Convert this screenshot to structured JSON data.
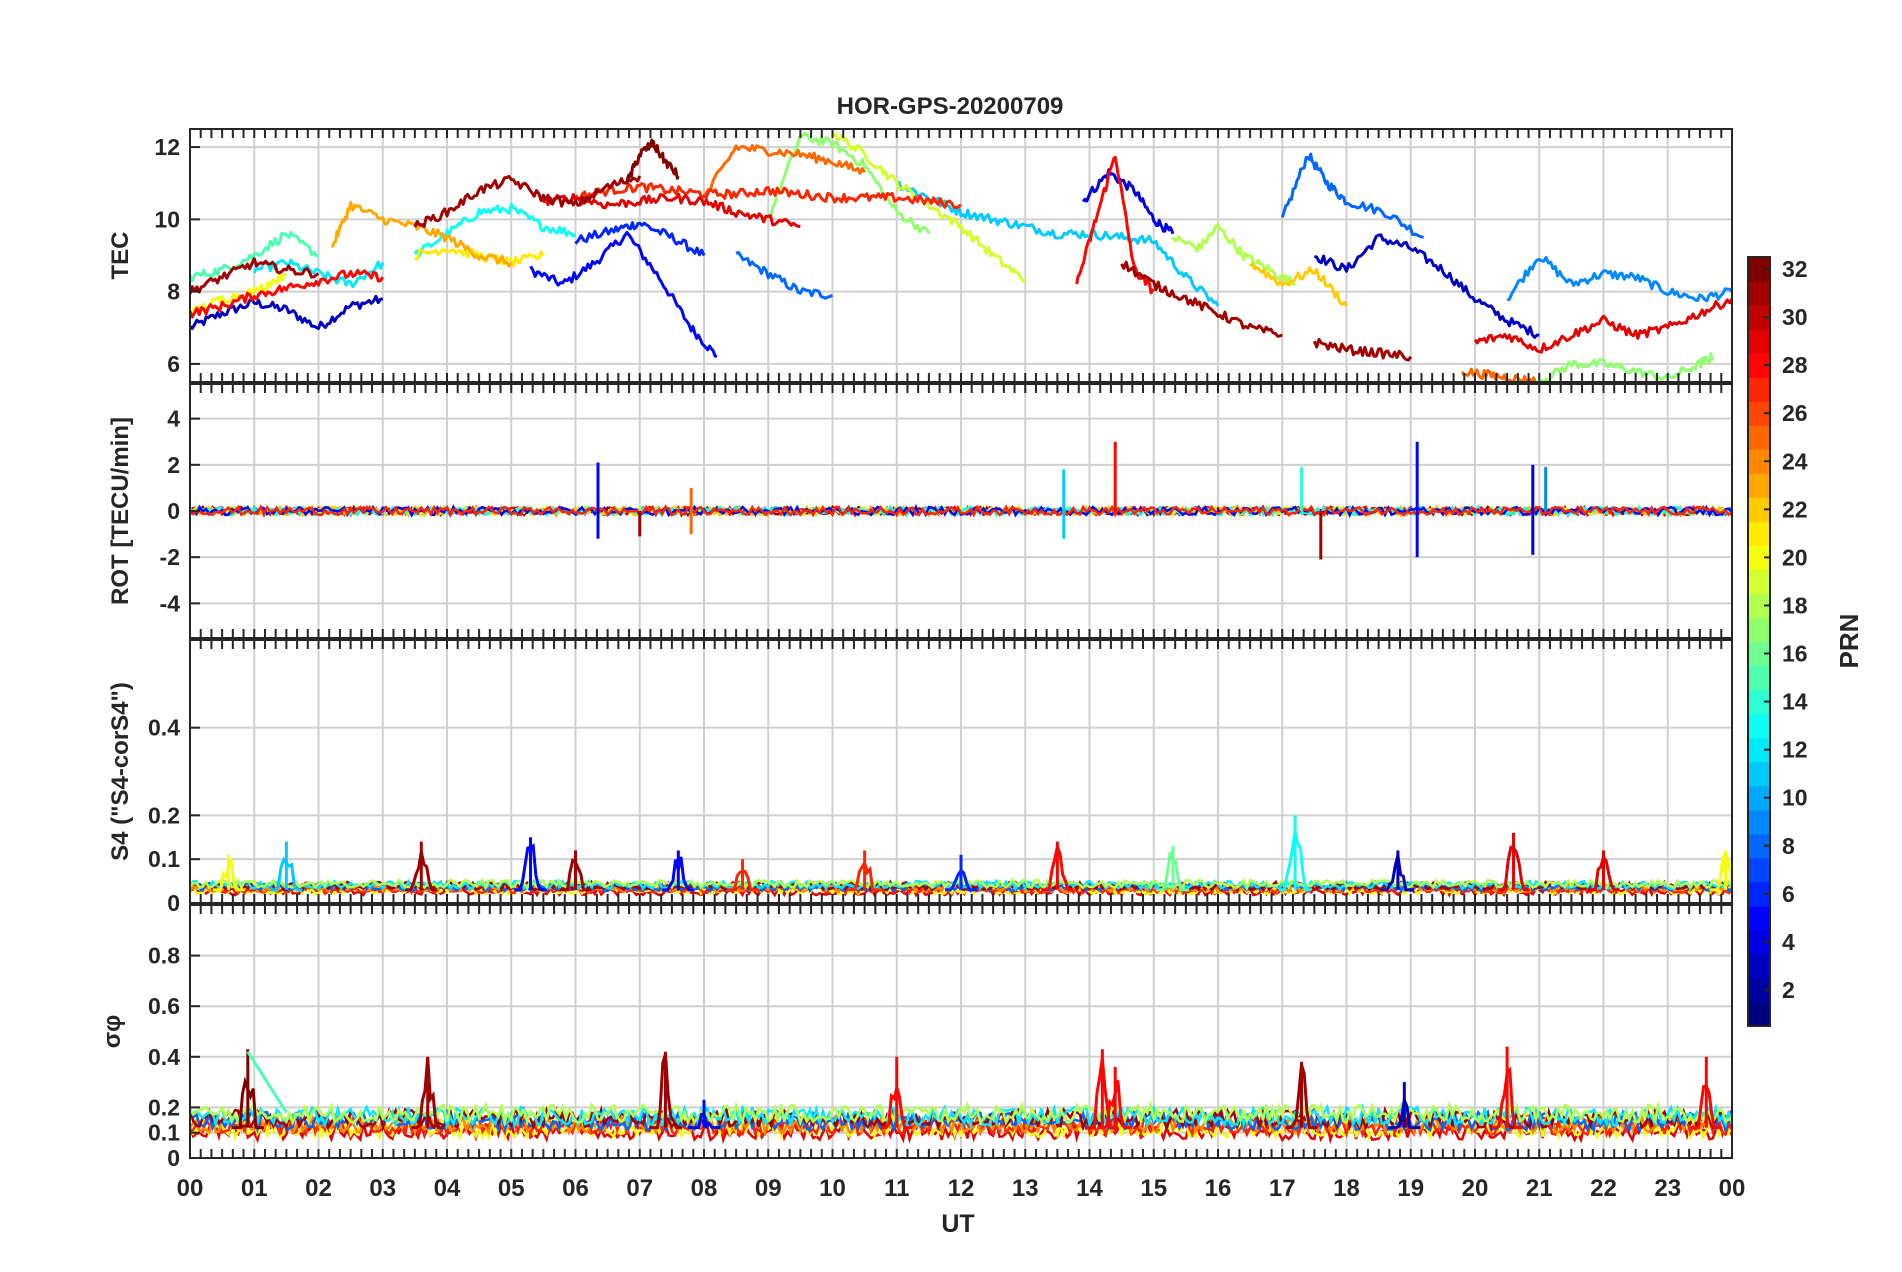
{
  "figure": {
    "title": "HOR-GPS-20200709",
    "xlabel": "UT"
  },
  "colorbar": {
    "label": "PRN",
    "range": [
      1,
      32
    ],
    "ticks": [
      "2",
      "4",
      "6",
      "8",
      "10",
      "12",
      "14",
      "16",
      "18",
      "20",
      "22",
      "24",
      "26",
      "28",
      "30",
      "32"
    ]
  },
  "chart_data": [
    {
      "type": "line",
      "ylabel": "TEC",
      "xlim": [
        0,
        24
      ],
      "ylim": [
        5.5,
        12.5
      ],
      "yticks": [
        "6",
        "8",
        "10",
        "12"
      ],
      "xticks": [
        "00",
        "01",
        "02",
        "03",
        "04",
        "05",
        "06",
        "07",
        "08",
        "09",
        "10",
        "11",
        "12",
        "13",
        "14",
        "15",
        "16",
        "17",
        "18",
        "19",
        "20",
        "21",
        "22",
        "23",
        "00"
      ],
      "grid": true,
      "series": [
        {
          "prn": 3,
          "x": [
            0.0,
            0.5,
            1.0,
            1.5,
            2.0,
            2.5,
            3.0
          ],
          "y": [
            7.0,
            7.4,
            7.7,
            7.5,
            7.0,
            7.6,
            7.8
          ]
        },
        {
          "prn": 5,
          "x": [
            5.3,
            5.8,
            6.3,
            6.8,
            7.3,
            7.8,
            8.2
          ],
          "y": [
            8.6,
            8.2,
            8.8,
            9.6,
            8.4,
            7.0,
            6.2
          ]
        },
        {
          "prn": 6,
          "x": [
            6.0,
            6.6,
            7.0,
            7.5,
            8.0
          ],
          "y": [
            9.4,
            9.7,
            9.9,
            9.5,
            9.0
          ]
        },
        {
          "prn": 8,
          "x": [
            8.5,
            9.0,
            9.5,
            10.0
          ],
          "y": [
            9.0,
            8.5,
            8.0,
            7.9
          ]
        },
        {
          "prn": 4,
          "x": [
            13.9,
            14.3,
            14.7,
            15.0,
            15.3
          ],
          "y": [
            10.5,
            11.3,
            10.8,
            10.0,
            9.6
          ]
        },
        {
          "prn": 8,
          "x": [
            17.0,
            17.4,
            17.7,
            18.0,
            18.6,
            19.2
          ],
          "y": [
            10.0,
            11.8,
            11.0,
            10.5,
            10.2,
            9.5
          ]
        },
        {
          "prn": 3,
          "x": [
            17.5,
            18.0,
            18.5,
            19.0,
            19.5,
            20.0,
            20.5,
            21.0
          ],
          "y": [
            9.0,
            8.6,
            9.5,
            9.2,
            8.6,
            7.8,
            7.2,
            6.8
          ]
        },
        {
          "prn": 9,
          "x": [
            20.5,
            21.0,
            21.5,
            22.0,
            22.5,
            23.0,
            23.5,
            24.0
          ],
          "y": [
            7.8,
            9.0,
            8.2,
            8.5,
            8.4,
            8.0,
            7.8,
            8.0
          ]
        },
        {
          "prn": 12,
          "x": [
            1.0,
            1.5,
            2.0,
            2.5,
            3.0
          ],
          "y": [
            8.6,
            8.8,
            8.5,
            8.2,
            8.8
          ]
        },
        {
          "prn": 13,
          "x": [
            3.5,
            4.0,
            4.5,
            5.0,
            5.5,
            6.0
          ],
          "y": [
            9.0,
            9.6,
            10.2,
            10.3,
            9.8,
            9.6
          ]
        },
        {
          "prn": 11,
          "x": [
            11.0,
            11.5,
            12.0,
            12.5,
            13.0,
            13.5,
            14.0,
            14.5,
            15.0,
            15.5,
            16.0
          ],
          "y": [
            11.0,
            10.6,
            10.2,
            10.0,
            9.8,
            9.6,
            9.6,
            9.5,
            9.4,
            8.4,
            7.6
          ]
        },
        {
          "prn": 15,
          "x": [
            0.0,
            0.5,
            1.0,
            1.5,
            2.0
          ],
          "y": [
            8.4,
            8.6,
            9.0,
            9.6,
            9.0
          ]
        },
        {
          "prn": 17,
          "x": [
            9.0,
            9.5,
            10.0,
            10.5,
            11.0,
            11.5
          ],
          "y": [
            10.0,
            12.3,
            12.1,
            11.5,
            10.2,
            9.6
          ]
        },
        {
          "prn": 18,
          "x": [
            15.3,
            15.7,
            16.0,
            16.4,
            16.8,
            17.2
          ],
          "y": [
            9.5,
            9.2,
            9.8,
            9.0,
            8.6,
            8.2
          ]
        },
        {
          "prn": 17,
          "x": [
            21.0,
            21.5,
            22.0,
            22.5,
            23.0,
            23.5,
            23.7
          ],
          "y": [
            5.5,
            6.0,
            6.0,
            5.8,
            5.6,
            6.0,
            6.2
          ]
        },
        {
          "prn": 19,
          "x": [
            10.0,
            10.5,
            11.0,
            11.5,
            12.0,
            12.5,
            13.0
          ],
          "y": [
            12.4,
            11.8,
            11.0,
            10.4,
            9.8,
            9.0,
            8.3
          ]
        },
        {
          "prn": 20,
          "x": [
            0.0,
            0.5,
            1.0,
            1.5
          ],
          "y": [
            7.4,
            7.8,
            8.0,
            8.5
          ]
        },
        {
          "prn": 21,
          "x": [
            3.5,
            4.0,
            4.5,
            5.0,
            5.5
          ],
          "y": [
            9.0,
            9.2,
            9.0,
            8.8,
            9.0
          ]
        },
        {
          "prn": 22,
          "x": [
            16.5,
            17.0,
            17.5,
            18.0
          ],
          "y": [
            8.8,
            8.2,
            8.6,
            7.6
          ]
        },
        {
          "prn": 23,
          "x": [
            2.2,
            2.5,
            3.0,
            3.5,
            4.0,
            4.5,
            5.0
          ],
          "y": [
            9.2,
            10.4,
            10.0,
            9.8,
            9.5,
            9.0,
            8.8
          ]
        },
        {
          "prn": 25,
          "x": [
            8.0,
            8.5,
            9.0,
            9.5,
            10.0,
            10.5
          ],
          "y": [
            10.6,
            12.0,
            11.9,
            11.8,
            11.6,
            11.3
          ]
        },
        {
          "prn": 25,
          "x": [
            19.8,
            20.2,
            20.6,
            21.0
          ],
          "y": [
            5.8,
            5.7,
            5.6,
            5.5
          ]
        },
        {
          "prn": 27,
          "x": [
            6.0,
            6.5,
            7.0,
            7.5,
            8.0,
            8.5,
            9.0,
            9.5,
            10.0,
            10.5,
            11.0,
            11.5,
            12.0
          ],
          "y": [
            10.6,
            10.8,
            10.9,
            10.8,
            10.7,
            10.7,
            10.8,
            10.7,
            10.6,
            10.6,
            10.6,
            10.5,
            10.4
          ]
        },
        {
          "prn": 28,
          "x": [
            0.0,
            0.5,
            1.0,
            1.5,
            2.0,
            2.5,
            3.0
          ],
          "y": [
            7.4,
            7.6,
            7.9,
            8.1,
            8.3,
            8.5,
            8.4
          ]
        },
        {
          "prn": 28,
          "x": [
            13.8,
            14.1,
            14.4,
            14.7,
            15.0
          ],
          "y": [
            8.2,
            10.0,
            11.8,
            8.6,
            8.0
          ]
        },
        {
          "prn": 29,
          "x": [
            5.5,
            6.0,
            6.5,
            7.0,
            7.5,
            8.0,
            8.5,
            9.0,
            9.5
          ],
          "y": [
            10.5,
            10.6,
            10.4,
            10.5,
            10.6,
            10.5,
            10.2,
            10.0,
            9.8
          ]
        },
        {
          "prn": 29,
          "x": [
            20.0,
            20.5,
            21.0,
            21.5,
            22.0,
            22.5,
            23.0,
            23.5,
            24.0
          ],
          "y": [
            6.6,
            6.8,
            6.4,
            6.8,
            7.2,
            6.8,
            7.0,
            7.4,
            7.8
          ]
        },
        {
          "prn": 31,
          "x": [
            0.0,
            0.5,
            1.0,
            1.5,
            2.0
          ],
          "y": [
            8.0,
            8.4,
            8.8,
            8.6,
            8.5
          ]
        },
        {
          "prn": 31,
          "x": [
            3.5,
            4.0,
            4.5,
            5.0,
            5.5,
            6.0,
            6.5,
            7.0
          ],
          "y": [
            9.8,
            10.2,
            10.8,
            11.1,
            10.6,
            10.4,
            10.9,
            11.2
          ]
        },
        {
          "prn": 31,
          "x": [
            14.5,
            15.0,
            15.5,
            16.0,
            16.5,
            17.0
          ],
          "y": [
            8.8,
            8.2,
            7.8,
            7.4,
            7.0,
            6.8
          ]
        },
        {
          "prn": 31,
          "x": [
            17.5,
            18.0,
            18.5,
            19.0
          ],
          "y": [
            6.6,
            6.4,
            6.3,
            6.2
          ]
        },
        {
          "prn": 32,
          "x": [
            6.8,
            7.0,
            7.2,
            7.4,
            7.6
          ],
          "y": [
            11.0,
            11.8,
            12.1,
            11.6,
            11.2
          ]
        }
      ]
    },
    {
      "type": "line",
      "ylabel": "ROT [TECU/min]",
      "xlim": [
        0,
        24
      ],
      "ylim": [
        -5.5,
        5.5
      ],
      "yticks": [
        "-4",
        "-2",
        "0",
        "2",
        "4"
      ],
      "grid": true,
      "spikes": [
        {
          "x": 6.35,
          "y": 2.1,
          "prn": 5
        },
        {
          "x": 6.35,
          "y": -1.2,
          "prn": 5
        },
        {
          "x": 7.0,
          "y": -1.1,
          "prn": 31
        },
        {
          "x": 7.8,
          "y": 1.0,
          "prn": 25
        },
        {
          "x": 7.8,
          "y": -1.0,
          "prn": 25
        },
        {
          "x": 13.6,
          "y": 1.8,
          "prn": 11
        },
        {
          "x": 13.6,
          "y": -1.2,
          "prn": 11
        },
        {
          "x": 14.4,
          "y": 3.0,
          "prn": 28
        },
        {
          "x": 17.3,
          "y": 1.9,
          "prn": 14
        },
        {
          "x": 17.6,
          "y": -2.1,
          "prn": 31
        },
        {
          "x": 19.1,
          "y": 3.0,
          "prn": 5
        },
        {
          "x": 19.1,
          "y": -2.0,
          "prn": 5
        },
        {
          "x": 20.9,
          "y": 2.0,
          "prn": 4
        },
        {
          "x": 20.9,
          "y": -1.9,
          "prn": 4
        },
        {
          "x": 21.1,
          "y": 1.9,
          "prn": 9
        }
      ]
    },
    {
      "type": "line",
      "ylabel": "S4 (\"S4-corS4\")",
      "xlim": [
        0,
        24
      ],
      "ylim": [
        0,
        0.6
      ],
      "yticks": [
        "0",
        "0.1",
        "0.2",
        "0.4"
      ],
      "grid": true,
      "baseline": 0.03,
      "peaks": [
        {
          "x": 0.6,
          "y": 0.11,
          "prn": 20
        },
        {
          "x": 1.5,
          "y": 0.14,
          "prn": 11
        },
        {
          "x": 3.6,
          "y": 0.14,
          "prn": 31
        },
        {
          "x": 5.3,
          "y": 0.15,
          "prn": 5
        },
        {
          "x": 6.0,
          "y": 0.12,
          "prn": 31
        },
        {
          "x": 7.6,
          "y": 0.12,
          "prn": 5
        },
        {
          "x": 8.6,
          "y": 0.1,
          "prn": 27
        },
        {
          "x": 10.5,
          "y": 0.12,
          "prn": 27
        },
        {
          "x": 12.0,
          "y": 0.11,
          "prn": 6
        },
        {
          "x": 13.5,
          "y": 0.14,
          "prn": 28
        },
        {
          "x": 15.3,
          "y": 0.13,
          "prn": 16
        },
        {
          "x": 17.2,
          "y": 0.2,
          "prn": 13
        },
        {
          "x": 18.8,
          "y": 0.12,
          "prn": 3
        },
        {
          "x": 20.6,
          "y": 0.16,
          "prn": 29
        },
        {
          "x": 22.0,
          "y": 0.12,
          "prn": 29
        },
        {
          "x": 23.9,
          "y": 0.12,
          "prn": 20
        }
      ]
    },
    {
      "type": "line",
      "ylabel": "σφ",
      "xlim": [
        0,
        24
      ],
      "ylim": [
        0,
        1.0
      ],
      "yticks": [
        "0",
        "0.1",
        "0.2",
        "0.4",
        "0.6",
        "0.8"
      ],
      "grid": true,
      "baseline": 0.12,
      "peaks": [
        {
          "x": 0.9,
          "y": 0.43,
          "prn": 32
        },
        {
          "x": 3.7,
          "y": 0.4,
          "prn": 31
        },
        {
          "x": 7.4,
          "y": 0.42,
          "prn": 31
        },
        {
          "x": 8.0,
          "y": 0.23,
          "prn": 5
        },
        {
          "x": 11.0,
          "y": 0.4,
          "prn": 28
        },
        {
          "x": 14.2,
          "y": 0.43,
          "prn": 28
        },
        {
          "x": 14.4,
          "y": 0.36,
          "prn": 28
        },
        {
          "x": 17.3,
          "y": 0.38,
          "prn": 31
        },
        {
          "x": 18.9,
          "y": 0.3,
          "prn": 3
        },
        {
          "x": 20.5,
          "y": 0.44,
          "prn": 28
        },
        {
          "x": 23.6,
          "y": 0.4,
          "prn": 28
        }
      ],
      "segment": {
        "x": [
          0.9,
          1.5
        ],
        "y": [
          0.42,
          0.18
        ],
        "prn": 15
      }
    }
  ]
}
